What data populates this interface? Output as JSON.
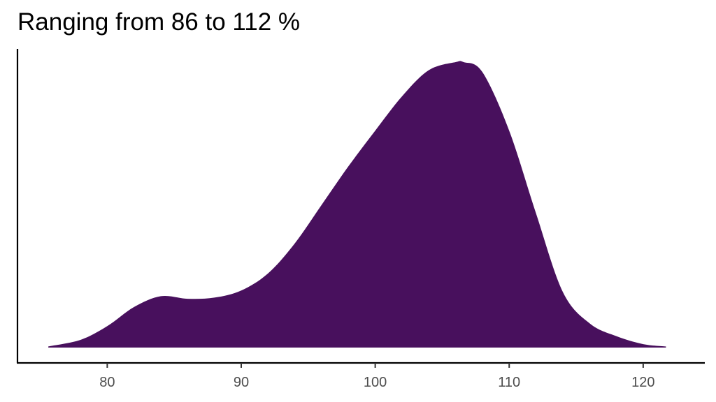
{
  "chart_data": {
    "type": "area",
    "title": "Ranging from 86 to 112 %",
    "xlabel": "",
    "ylabel": "",
    "xlim": [
      73.3,
      124.6
    ],
    "ylim": [
      0,
      1
    ],
    "xticks": [
      80,
      90,
      100,
      110,
      120
    ],
    "xtick_labels": [
      "80",
      "90",
      "100",
      "110",
      "120"
    ],
    "grid": false,
    "legend": "none",
    "fill_color": "#48105d",
    "series": [
      {
        "x": [
          75.6,
          78,
          80,
          82,
          84,
          86,
          88,
          90,
          92,
          94,
          96,
          98,
          100,
          102,
          104,
          106,
          106.6,
          108,
          110,
          112,
          114,
          116,
          118,
          120,
          121.7
        ],
        "y": [
          0.004,
          0.027,
          0.075,
          0.142,
          0.18,
          0.171,
          0.175,
          0.2,
          0.26,
          0.365,
          0.5,
          0.635,
          0.76,
          0.88,
          0.972,
          1.0,
          1.0,
          0.965,
          0.76,
          0.47,
          0.195,
          0.085,
          0.04,
          0.012,
          0.004
        ]
      }
    ]
  }
}
